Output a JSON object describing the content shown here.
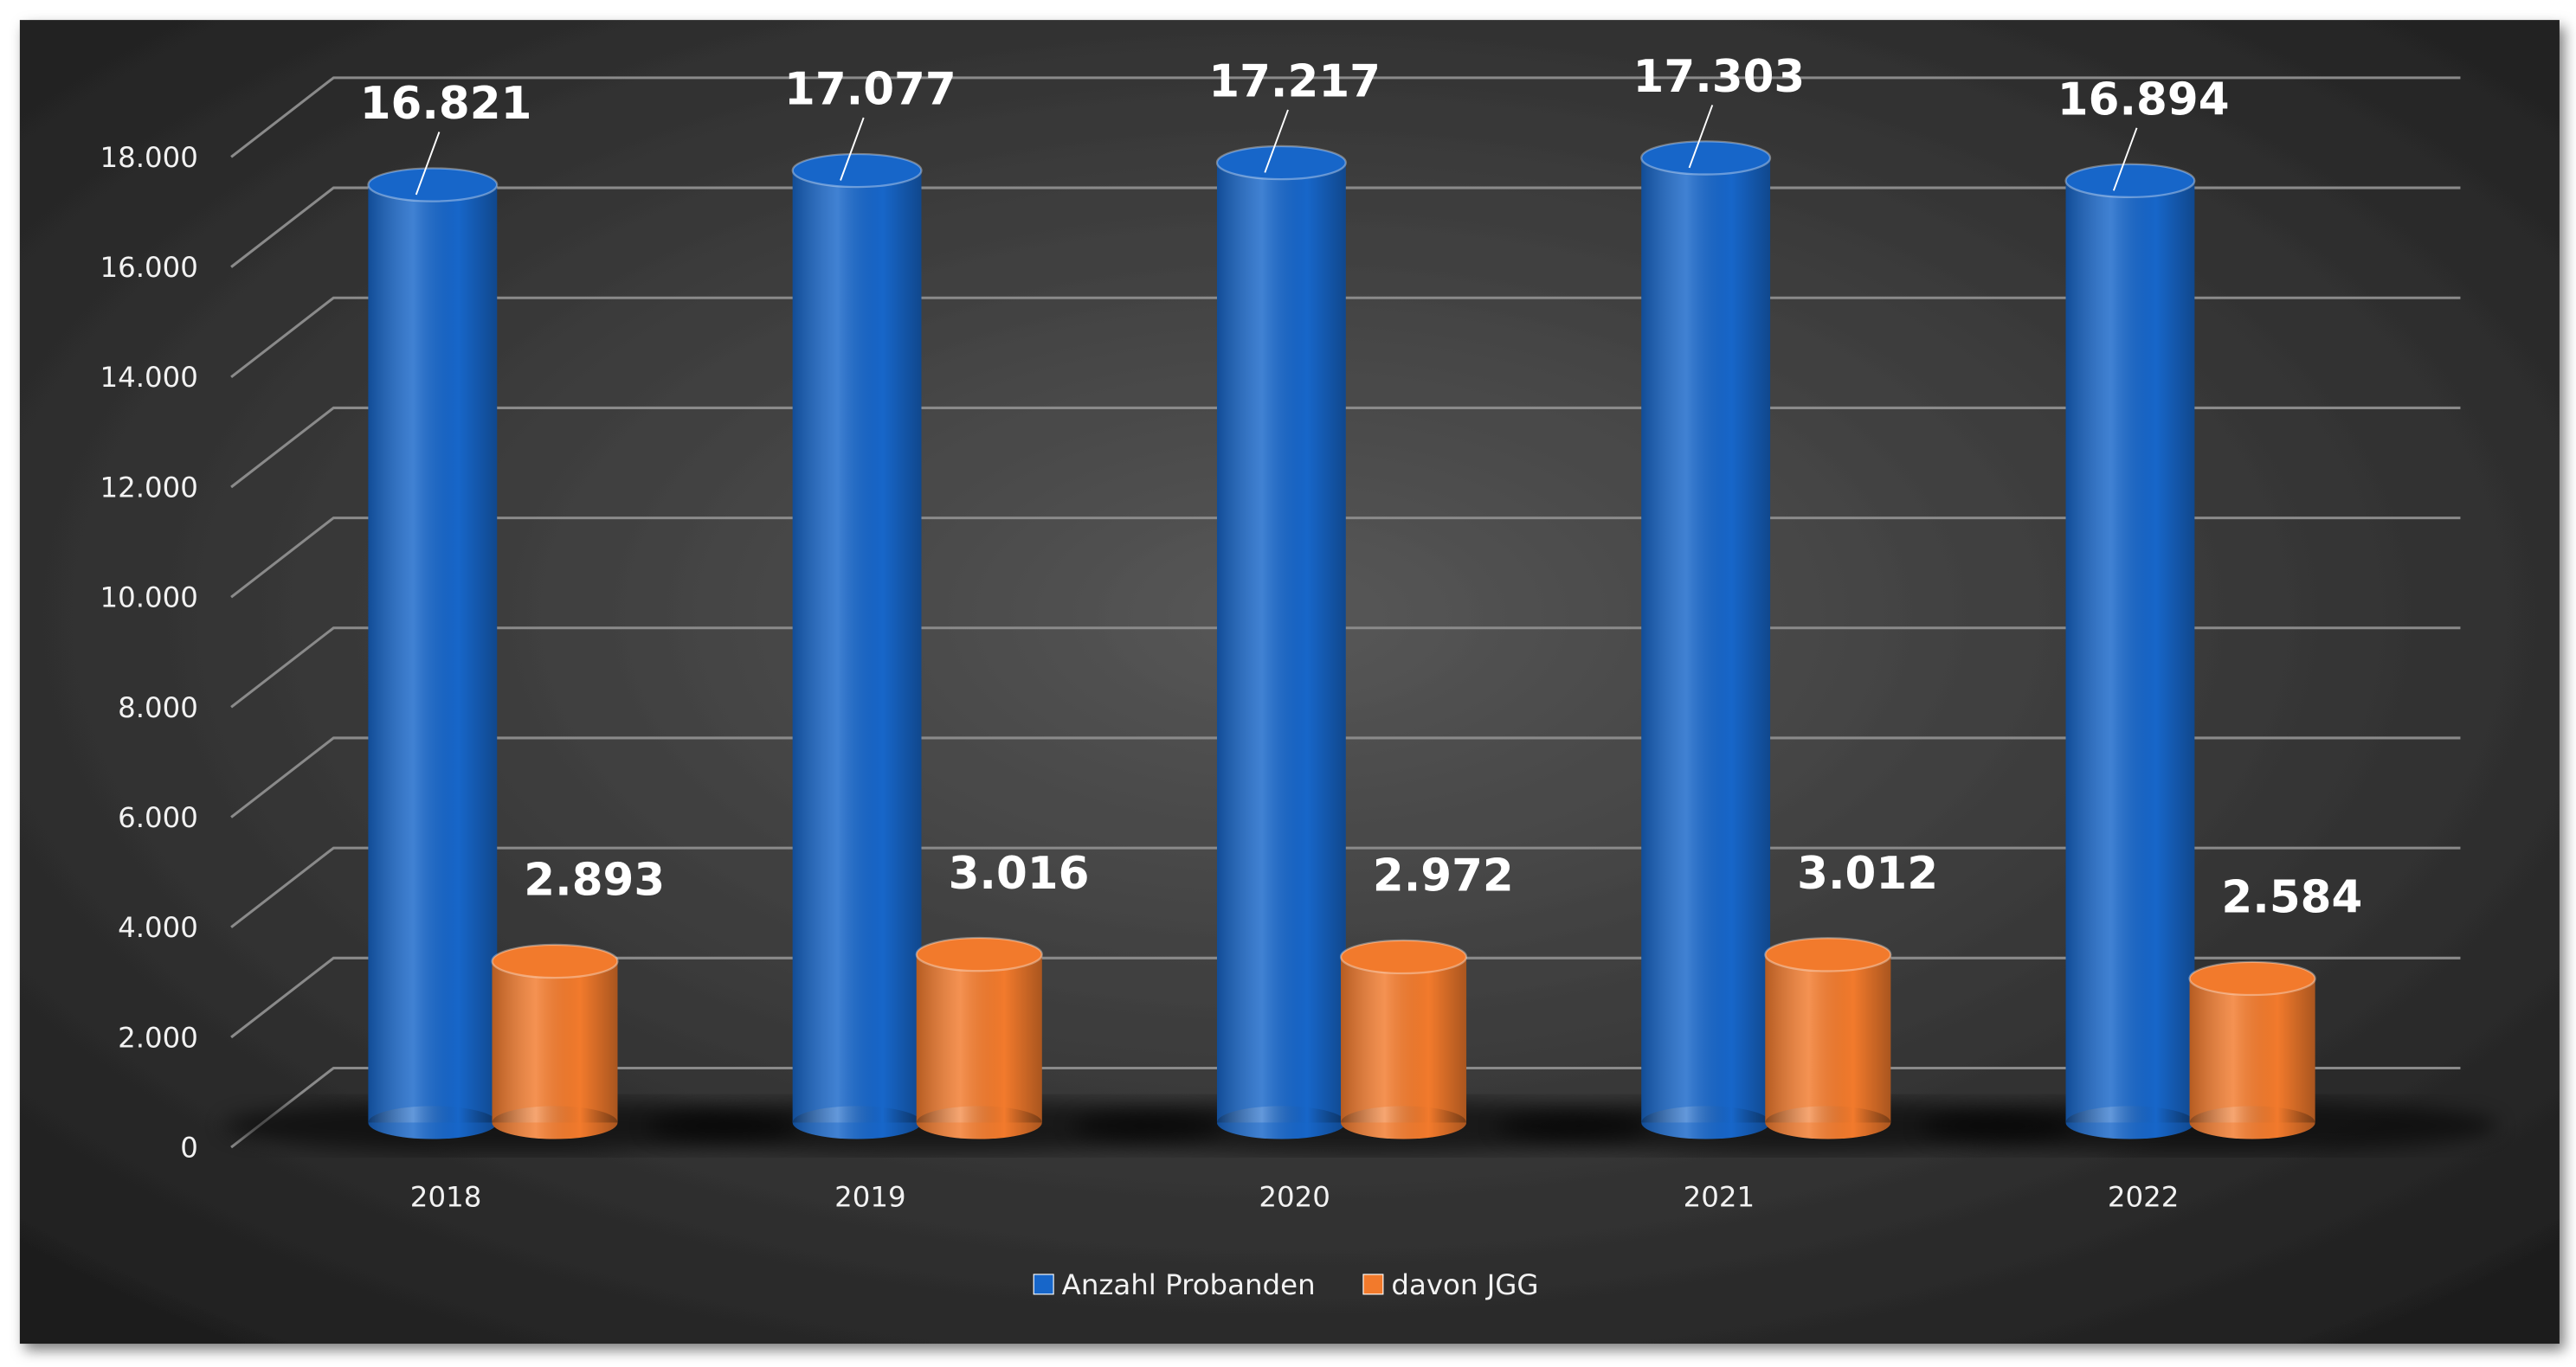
{
  "chart_data": {
    "type": "bar",
    "categories": [
      "2018",
      "2019",
      "2020",
      "2021",
      "2022"
    ],
    "series": [
      {
        "name": "Anzahl Probanden",
        "color": "#1766c9",
        "values": [
          16821,
          17077,
          17217,
          17303,
          16894
        ],
        "value_labels": [
          "16.821",
          "17.077",
          "17.217",
          "17.303",
          "16.894"
        ]
      },
      {
        "name": "davon JGG",
        "color": "#f27a2c",
        "values": [
          2893,
          3016,
          2972,
          3012,
          2584
        ],
        "value_labels": [
          "2.893",
          "3.016",
          "2.972",
          "3.012",
          "2.584"
        ]
      }
    ],
    "ylim": [
      0,
      18000
    ],
    "yticks": [
      0,
      {
        "value": 2000,
        "label": "2.000"
      },
      {
        "value": 4000,
        "label": "4.000"
      },
      {
        "value": 6000,
        "label": "6.000"
      },
      {
        "value": 8000,
        "label": "8.000"
      },
      {
        "value": 10000,
        "label": "10.000"
      },
      {
        "value": 12000,
        "label": "12.000"
      },
      {
        "value": 14000,
        "label": "14.000"
      },
      {
        "value": 16000,
        "label": "16.000"
      },
      {
        "value": 18000,
        "label": "18.000"
      }
    ],
    "grid": true,
    "legend": "bottom"
  }
}
